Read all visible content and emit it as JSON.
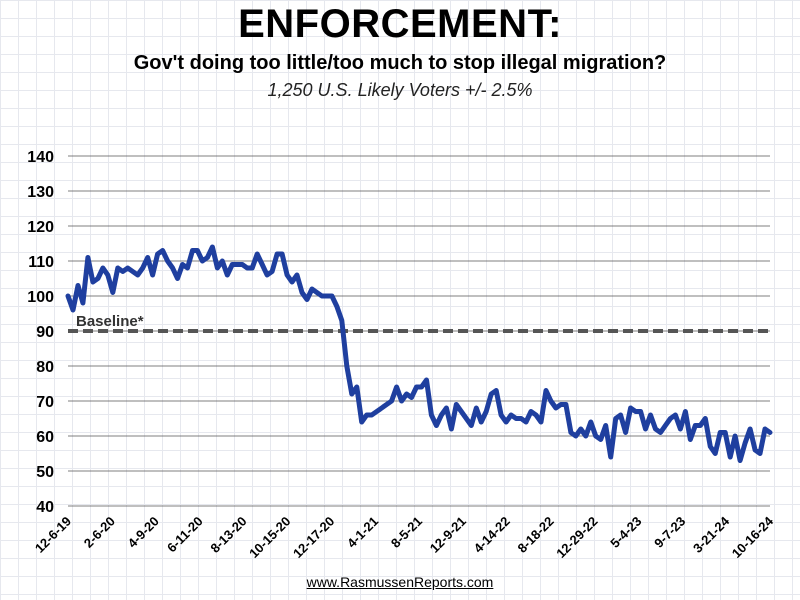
{
  "header": {
    "title": "ENFORCEMENT:",
    "subtitle": "Gov't doing too little/too much to stop illegal migration?",
    "sample": "1,250 U.S. Likely Voters +/- 2.5%"
  },
  "footer": {
    "source": "www.RasmussenReports.com"
  },
  "colors": {
    "series": "#1f3f9f",
    "baseline": "#555555",
    "grid": "#555555"
  },
  "chart_data": {
    "type": "line",
    "title": "ENFORCEMENT:",
    "xlabel": "",
    "ylabel": "",
    "ylim": [
      40,
      140
    ],
    "yticks": [
      40,
      50,
      60,
      70,
      80,
      90,
      100,
      110,
      120,
      130,
      140
    ],
    "xticks": [
      "12-6-19",
      "2-6-20",
      "4-9-20",
      "6-11-20",
      "8-13-20",
      "10-15-20",
      "12-17-20",
      "4-1-21",
      "8-5-21",
      "12-9-21",
      "4-14-22",
      "8-18-22",
      "12-29-22",
      "5-4-23",
      "9-7-23",
      "3-21-24",
      "10-16-24"
    ],
    "grid": "horizontal",
    "baseline": {
      "label": "Baseline*",
      "value": 90
    },
    "series": [
      {
        "values": [
          100,
          96,
          103,
          98,
          111,
          104,
          105,
          108,
          106,
          101,
          108,
          107,
          108,
          107,
          106,
          108,
          111,
          106,
          112,
          113,
          110,
          108,
          105,
          109,
          108,
          113,
          113,
          110,
          111,
          114,
          108,
          110,
          106,
          109,
          109,
          109,
          108,
          108,
          112,
          109,
          106,
          107,
          112,
          112,
          106,
          104,
          106,
          101,
          99,
          102,
          101,
          100,
          100,
          100,
          97,
          93,
          80,
          72,
          74,
          64,
          66,
          66,
          67,
          68,
          69,
          70,
          74,
          70,
          72,
          71,
          74,
          74,
          76,
          66,
          63,
          66,
          68,
          62,
          69,
          67,
          65,
          63,
          68,
          64,
          67,
          72,
          73,
          66,
          64,
          66,
          65,
          65,
          64,
          67,
          66,
          64,
          73,
          70,
          68,
          69,
          69,
          61,
          60,
          62,
          60,
          64,
          60,
          59,
          63,
          54,
          65,
          66,
          61,
          68,
          67,
          67,
          62,
          66,
          62,
          61,
          63,
          65,
          66,
          62,
          67,
          59,
          63,
          63,
          65,
          57,
          55,
          61,
          61,
          54,
          60,
          53,
          58,
          62,
          56,
          55,
          62,
          61
        ]
      }
    ]
  }
}
